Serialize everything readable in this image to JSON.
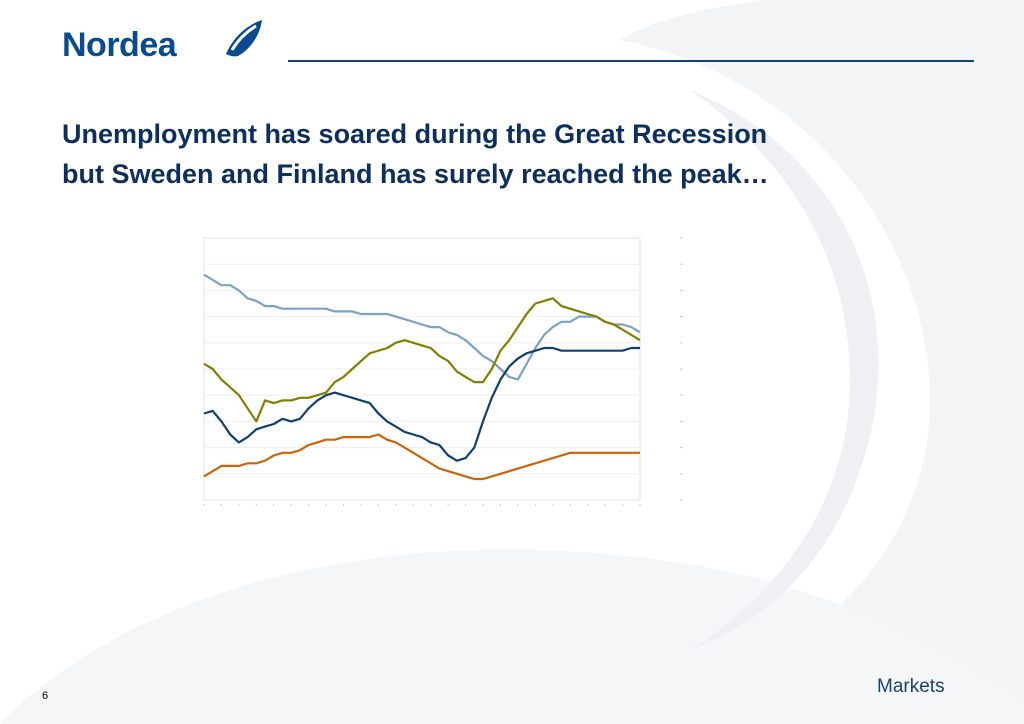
{
  "brand": {
    "logo_text": "Nordea",
    "logo_color": "#0a4a8f"
  },
  "slide": {
    "title_line1": "Unemployment has soared during the Great Recession",
    "title_line2": "but Sweden and Finland has surely reached the peak…",
    "page_number": "6",
    "footer_label": "Markets"
  },
  "colors": {
    "title": "#0e2e5c",
    "rule": "#1c3f73",
    "series": [
      "#7da1c4",
      "#808000",
      "#123f6b",
      "#c8660c"
    ]
  },
  "chart_data": {
    "type": "line",
    "title": "",
    "xlabel": "",
    "ylabel": "",
    "grid": true,
    "legend": "none",
    "ylim": [
      0,
      100
    ],
    "x": [
      0,
      2,
      4,
      6,
      8,
      10,
      12,
      14,
      16,
      18,
      20,
      22,
      24,
      26,
      28,
      30,
      32,
      34,
      36,
      38,
      40,
      42,
      44,
      46,
      48,
      50,
      52,
      54,
      56,
      58,
      60,
      62,
      64,
      66,
      68,
      70,
      72,
      74,
      76,
      78,
      80,
      82,
      84,
      86,
      88,
      90,
      92,
      94,
      96,
      98,
      100
    ],
    "series": [
      {
        "values": [
          86,
          84,
          82,
          82,
          80,
          77,
          76,
          74,
          74,
          73,
          73,
          73,
          73,
          73,
          73,
          72,
          72,
          72,
          71,
          71,
          71,
          71,
          70,
          69,
          68,
          67,
          66,
          66,
          64,
          63,
          61,
          58,
          55,
          53,
          50,
          47,
          46,
          52,
          58,
          63,
          66,
          68,
          68,
          70,
          70,
          70,
          68,
          67,
          67,
          66,
          64
        ]
      },
      {
        "values": [
          52,
          50,
          46,
          43,
          40,
          35,
          30,
          38,
          37,
          38,
          38,
          39,
          39,
          40,
          41,
          45,
          47,
          50,
          53,
          56,
          57,
          58,
          60,
          61,
          60,
          59,
          58,
          55,
          53,
          49,
          47,
          45,
          45,
          50,
          57,
          61,
          66,
          71,
          75,
          76,
          77,
          74,
          73,
          72,
          71,
          70,
          68,
          67,
          65,
          63,
          61
        ]
      },
      {
        "values": [
          33,
          34,
          30,
          25,
          22,
          24,
          27,
          28,
          29,
          31,
          30,
          31,
          35,
          38,
          40,
          41,
          40,
          39,
          38,
          37,
          33,
          30,
          28,
          26,
          25,
          24,
          22,
          21,
          17,
          15,
          16,
          20,
          30,
          39,
          46,
          51,
          54,
          56,
          57,
          58,
          58,
          57,
          57,
          57,
          57,
          57,
          57,
          57,
          57,
          58,
          58
        ]
      },
      {
        "values": [
          9,
          11,
          13,
          13,
          13,
          14,
          14,
          15,
          17,
          18,
          18,
          19,
          21,
          22,
          23,
          23,
          24,
          24,
          24,
          24,
          25,
          23,
          22,
          20,
          18,
          16,
          14,
          12,
          11,
          10,
          9,
          8,
          8,
          9,
          10,
          11,
          12,
          13,
          14,
          15,
          16,
          17,
          18,
          18,
          18,
          18,
          18,
          18,
          18,
          18,
          18
        ]
      }
    ]
  }
}
